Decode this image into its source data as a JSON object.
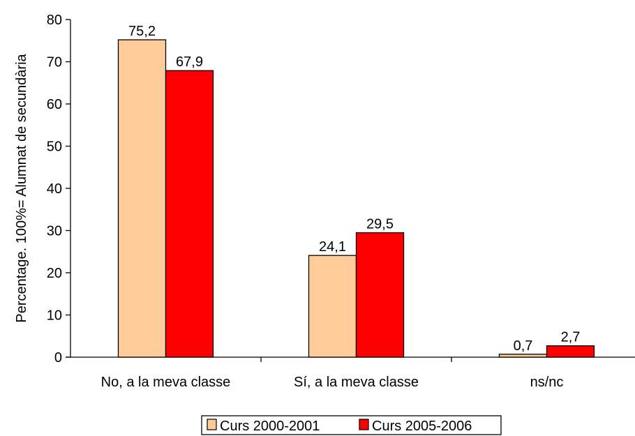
{
  "chart_data": {
    "type": "bar",
    "title": "",
    "xlabel": "",
    "ylabel": "Percentage. 100%= Alumnat de secundària",
    "categories": [
      "No, a la meva classe",
      "Sí, a la meva classe",
      "ns/nc"
    ],
    "series": [
      {
        "name": "Curs 2000-2001",
        "values": [
          75.2,
          24.1,
          0.7
        ],
        "labels": [
          "75,2",
          "24,1",
          "0,7"
        ],
        "color": "#FFCC99"
      },
      {
        "name": "Curs 2005-2006",
        "values": [
          67.9,
          29.5,
          2.7
        ],
        "labels": [
          "67,9",
          "29,5",
          "2,7"
        ],
        "color": "#FF0000"
      }
    ],
    "ylim": [
      0,
      80
    ],
    "yticks": [
      0,
      10,
      20,
      30,
      40,
      50,
      60,
      70,
      80
    ],
    "grid": false,
    "legend_position": "bottom"
  }
}
